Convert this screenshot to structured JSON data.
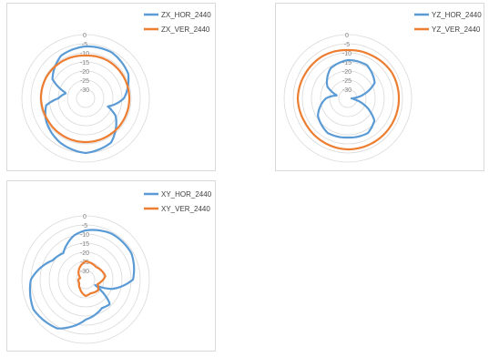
{
  "colors": {
    "hor": "#5b9bd5",
    "ver": "#ed7d31",
    "grid": "#d9d9d9",
    "text": "#595959"
  },
  "chart_data": [
    {
      "type": "polar-line",
      "title": "",
      "r_ticks": [
        "0",
        "-5",
        "-10",
        "-15",
        "-20",
        "-25",
        "-30"
      ],
      "r_range": [
        -35,
        0
      ],
      "grid": true,
      "legend_position": "top-right",
      "theta_units": "deg_clockwise_from_top",
      "series": [
        {
          "name": "ZX_HOR_2440",
          "color": "#5b9bd5",
          "points": [
            [
              0,
              -6.5
            ],
            [
              30,
              -6
            ],
            [
              60,
              -8
            ],
            [
              90,
              -14
            ],
            [
              110,
              -22
            ],
            [
              120,
              -16
            ],
            [
              150,
              -7
            ],
            [
              180,
              -5
            ],
            [
              210,
              -7
            ],
            [
              240,
              -10
            ],
            [
              260,
              -13
            ],
            [
              270,
              -20
            ],
            [
              285,
              -24
            ],
            [
              300,
              -14
            ],
            [
              330,
              -8
            ],
            [
              360,
              -6.5
            ]
          ]
        },
        {
          "name": "ZX_VER_2440",
          "color": "#ed7d31",
          "points": [
            [
              0,
              -11.5
            ],
            [
              30,
              -11
            ],
            [
              60,
              -11
            ],
            [
              90,
              -11
            ],
            [
              120,
              -11
            ],
            [
              150,
              -11
            ],
            [
              180,
              -11
            ],
            [
              210,
              -11
            ],
            [
              240,
              -11
            ],
            [
              270,
              -10.5
            ],
            [
              300,
              -10.5
            ],
            [
              330,
              -11
            ],
            [
              360,
              -11.5
            ]
          ]
        }
      ]
    },
    {
      "type": "polar-line",
      "title": "",
      "r_ticks": [
        "0",
        "-5",
        "-10",
        "-15",
        "-20",
        "-25",
        "-30"
      ],
      "r_range": [
        -35,
        0
      ],
      "grid": true,
      "legend_position": "top-right",
      "theta_units": "deg_clockwise_from_top",
      "series": [
        {
          "name": "YZ_HOR_2440",
          "color": "#5b9bd5",
          "points": [
            [
              0,
              -14
            ],
            [
              30,
              -14
            ],
            [
              60,
              -18
            ],
            [
              90,
              -33
            ],
            [
              100,
              -31
            ],
            [
              130,
              -16
            ],
            [
              150,
              -13
            ],
            [
              180,
              -13.5
            ],
            [
              210,
              -13
            ],
            [
              240,
              -16
            ],
            [
              270,
              -23
            ],
            [
              285,
              -29
            ],
            [
              300,
              -22
            ],
            [
              330,
              -16
            ],
            [
              360,
              -14
            ]
          ]
        },
        {
          "name": "YZ_VER_2440",
          "color": "#ed7d31",
          "points": [
            [
              0,
              -8.5
            ],
            [
              30,
              -8
            ],
            [
              60,
              -7
            ],
            [
              90,
              -7
            ],
            [
              120,
              -7
            ],
            [
              150,
              -7
            ],
            [
              180,
              -7
            ],
            [
              210,
              -7.5
            ],
            [
              240,
              -8
            ],
            [
              270,
              -7.5
            ],
            [
              300,
              -8
            ],
            [
              330,
              -8
            ],
            [
              360,
              -8.5
            ]
          ]
        }
      ]
    },
    {
      "type": "polar-line",
      "title": "",
      "r_ticks": [
        "0",
        "-5",
        "-10",
        "-15",
        "-20",
        "-25",
        "-30"
      ],
      "r_range": [
        -35,
        0
      ],
      "grid": true,
      "legend_position": "top-right",
      "theta_units": "deg_clockwise_from_top",
      "series": [
        {
          "name": "XY_HOR_2440",
          "color": "#5b9bd5",
          "points": [
            [
              0,
              -8
            ],
            [
              30,
              -6
            ],
            [
              60,
              -6
            ],
            [
              90,
              -9
            ],
            [
              110,
              -20
            ],
            [
              120,
              -29
            ],
            [
              135,
              -16
            ],
            [
              150,
              -17
            ],
            [
              180,
              -13
            ],
            [
              210,
              -4
            ],
            [
              240,
              -2
            ],
            [
              270,
              -5
            ],
            [
              300,
              -14
            ],
            [
              320,
              -16
            ],
            [
              345,
              -10
            ],
            [
              360,
              -8
            ]
          ]
        },
        {
          "name": "XY_VER_2440",
          "color": "#ed7d31",
          "points": [
            [
              0,
              -25
            ],
            [
              40,
              -26
            ],
            [
              80,
              -24
            ],
            [
              110,
              -28
            ],
            [
              130,
              -26
            ],
            [
              160,
              -27
            ],
            [
              180,
              -26
            ],
            [
              210,
              -29
            ],
            [
              240,
              -31
            ],
            [
              270,
              -31
            ],
            [
              285,
              -32
            ],
            [
              300,
              -31
            ],
            [
              330,
              -28
            ],
            [
              360,
              -25
            ]
          ]
        }
      ]
    }
  ]
}
